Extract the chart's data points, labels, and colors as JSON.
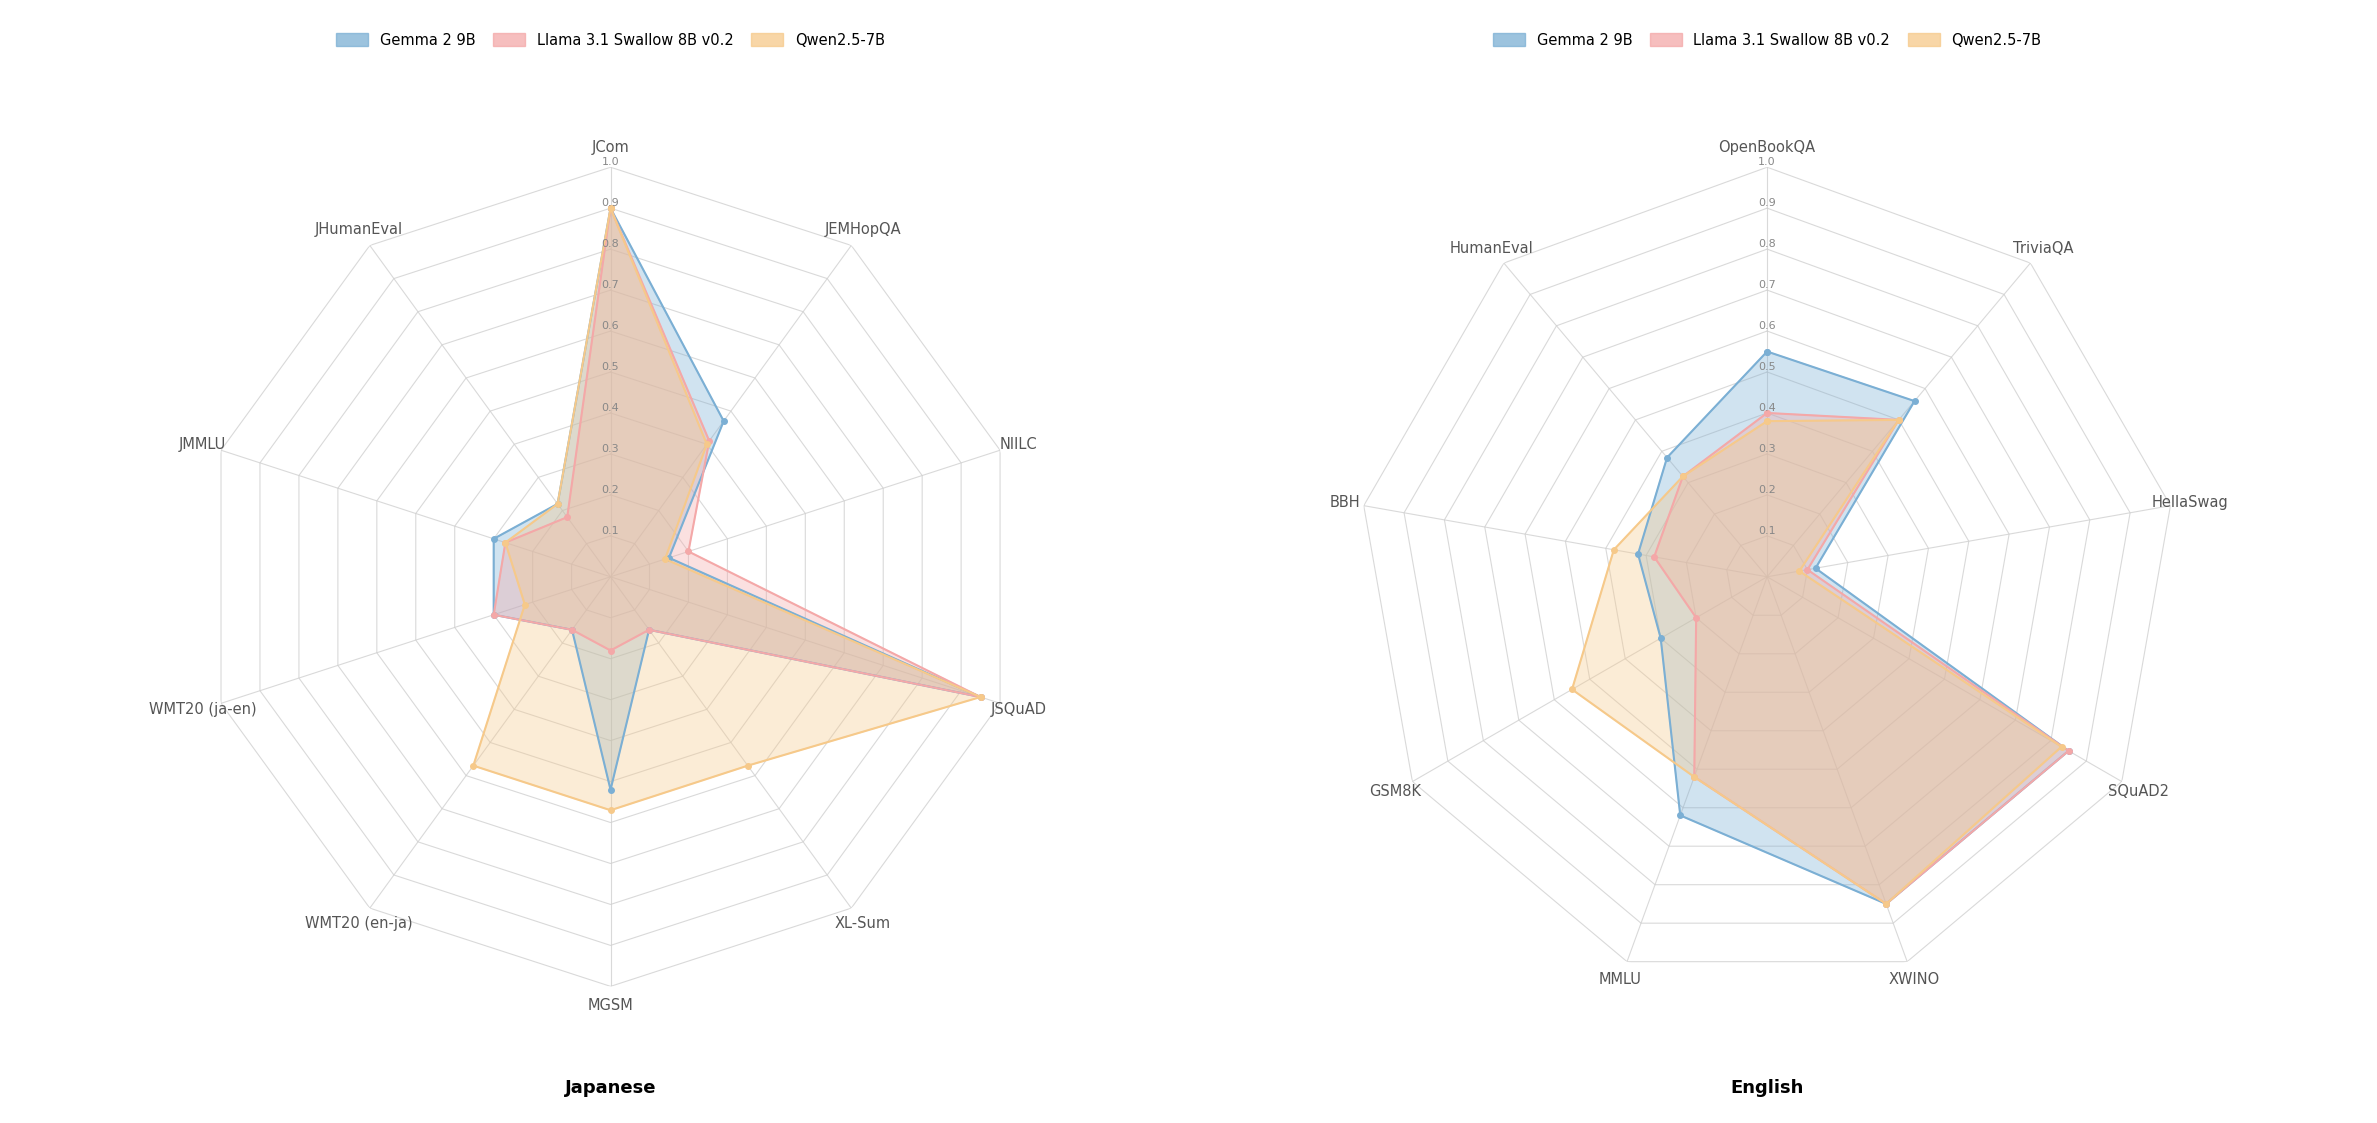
{
  "japanese": {
    "categories": [
      "JCom",
      "JEMHopQA",
      "NIILC",
      "JSQuAD",
      "XL-Sum",
      "MGSM",
      "WMT20 (en-ja)",
      "WMT20 (ja-en)",
      "JMMLU",
      "JHumanEval"
    ],
    "gemma2_9b": [
      0.9,
      0.47,
      0.15,
      0.95,
      0.16,
      0.52,
      0.16,
      0.3,
      0.3,
      0.22
    ],
    "llama31_8b": [
      0.9,
      0.41,
      0.2,
      0.95,
      0.16,
      0.18,
      0.16,
      0.3,
      0.27,
      0.18
    ],
    "qwen25_7b": [
      0.9,
      0.4,
      0.14,
      0.95,
      0.57,
      0.57,
      0.57,
      0.22,
      0.27,
      0.22
    ],
    "title": "Japanese"
  },
  "english": {
    "categories": [
      "OpenBookQA",
      "TriviaQA",
      "HellaSwag",
      "SQuAD2",
      "XWINO",
      "MMLU",
      "GSM8K",
      "BBH",
      "HumanEval"
    ],
    "gemma2_9b": [
      0.55,
      0.56,
      0.12,
      0.85,
      0.85,
      0.62,
      0.3,
      0.32,
      0.38
    ],
    "llama31_8b": [
      0.4,
      0.5,
      0.1,
      0.85,
      0.85,
      0.52,
      0.2,
      0.28,
      0.32
    ],
    "qwen25_7b": [
      0.38,
      0.5,
      0.08,
      0.83,
      0.85,
      0.52,
      0.55,
      0.38,
      0.32
    ],
    "title": "English"
  },
  "colors": {
    "gemma2_9b": "#7bafd4",
    "llama31_8b": "#f4a8a8",
    "qwen25_7b": "#f6c98a"
  },
  "legend_labels": [
    "Gemma 2 9B",
    "Llama 3.1 Swallow 8B v0.2",
    "Qwen2.5-7B"
  ],
  "background_color": "#ffffff",
  "grid_color": "#d0d0d0",
  "label_fontsize": 10.5,
  "title_fontsize": 13,
  "rticks": [
    0.1,
    0.2,
    0.3,
    0.4,
    0.5,
    0.6,
    0.7,
    0.8,
    0.9,
    1.0
  ],
  "fill_alpha": 0.35,
  "line_width": 1.5,
  "marker_size": 4
}
